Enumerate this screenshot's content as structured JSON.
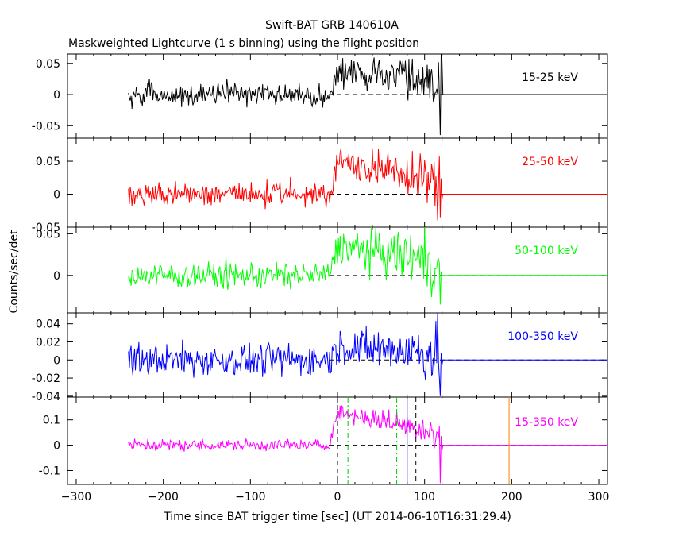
{
  "title": "Swift-BAT GRB 140610A",
  "subtitle": "Maskweighted Lightcurve (1 s binning) using the flight position",
  "xlabel": "Time since BAT trigger time [sec] (UT 2014-06-10T16:31:29.4)",
  "ylabel": "Counts/sec/det",
  "colors": {
    "axes": "#000000",
    "dashed_zero": "#000000",
    "marker_green": "#00cc00",
    "marker_blue": "#0000ff",
    "marker_black": "#000000",
    "marker_orange": "#ff8000"
  },
  "chart_data": {
    "type": "line",
    "xlim": [
      -310,
      310
    ],
    "xticks": [
      -300,
      -200,
      -100,
      0,
      100,
      200,
      300
    ],
    "data_range": [
      -240,
      120
    ],
    "burst_start": -10,
    "panels": [
      {
        "band": "15-25 keV",
        "color": "#000000",
        "ylim": [
          -0.07,
          0.065
        ],
        "yticks": [
          -0.05,
          0,
          0.05
        ],
        "yticklabels": [
          "-0.05",
          "0",
          "0.05"
        ],
        "pre_std": 0.009,
        "post_level": [
          0.034,
          0.025
        ],
        "post_std": 0.011,
        "dip": -0.065
      },
      {
        "band": "25-50 keV",
        "color": "#ff0000",
        "ylim": [
          -0.05,
          0.085
        ],
        "yticks": [
          -0.05,
          0,
          0.05
        ],
        "yticklabels": [
          "-0.05",
          "0",
          "0.05"
        ],
        "pre_std": 0.009,
        "post_level": [
          0.05,
          0.02
        ],
        "post_std": 0.01,
        "dip": -0.035
      },
      {
        "band": "50-100 keV",
        "color": "#00ff00",
        "ylim": [
          -0.045,
          0.058
        ],
        "yticks": [
          0,
          0.05
        ],
        "yticklabels": [
          "0",
          "0.05"
        ],
        "pre_std": 0.008,
        "post_level": [
          0.035,
          0.018
        ],
        "post_std": 0.01,
        "dip": -0.035
      },
      {
        "band": "100-350 keV",
        "color": "#0000ff",
        "ylim": [
          -0.041,
          0.052
        ],
        "yticks": [
          -0.04,
          -0.02,
          0,
          0.02,
          0.04
        ],
        "yticklabels": [
          "-0.04",
          "-0.02",
          "0",
          "0.02",
          "0.04"
        ],
        "pre_std": 0.009,
        "post_level": [
          0.015,
          0.008
        ],
        "post_std": 0.009,
        "dip": -0.04
      },
      {
        "band": "15-350 keV",
        "color": "#ff00ff",
        "ylim": [
          -0.155,
          0.19
        ],
        "yticks": [
          -0.1,
          0,
          0.1
        ],
        "yticklabels": [
          "-0.1",
          "0",
          "0.1"
        ],
        "pre_std": 0.012,
        "post_level": [
          0.13,
          0.06
        ],
        "post_std": 0.016,
        "dip": -0.15
      }
    ],
    "markers": [
      {
        "x": 0,
        "color": "#000000",
        "style": "dashed"
      },
      {
        "x": 12,
        "color": "#00cc00",
        "style": "dashdot"
      },
      {
        "x": 68,
        "color": "#00cc00",
        "style": "dashdot"
      },
      {
        "x": 80,
        "color": "#0000ff",
        "style": "solid"
      },
      {
        "x": 90,
        "color": "#000000",
        "style": "dashed"
      },
      {
        "x": 197,
        "color": "#ff8000",
        "style": "solid"
      }
    ]
  }
}
